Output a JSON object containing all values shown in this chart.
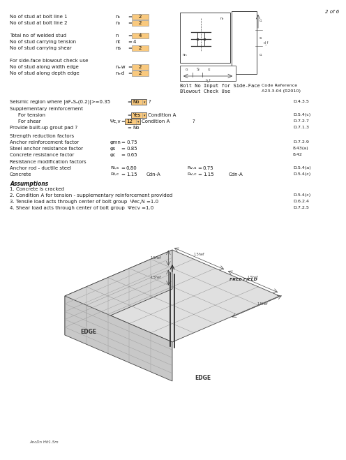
{
  "page_label": "2 of 6",
  "bg": "#ffffff",
  "orange": "#f9c97e",
  "rows": [
    {
      "label": "No of stud at bolt line 1",
      "var": "n₁",
      "val": "2",
      "hi": true
    },
    {
      "label": "No of stud at bolt line 2",
      "var": "n₂",
      "val": "2",
      "hi": true
    },
    {
      "label": "",
      "var": "",
      "val": "",
      "hi": false
    },
    {
      "label": "Total no of welded stud",
      "var": "n",
      "val": "4",
      "hi": true
    },
    {
      "label": "No of stud carrying tension",
      "var": "nt",
      "val": "4",
      "hi": false
    },
    {
      "label": "No of stud carrying shear",
      "var": "ns",
      "val": "2",
      "hi": true
    },
    {
      "label": "",
      "var": "",
      "val": "",
      "hi": false
    },
    {
      "label": "For side-face blowout check use",
      "var": "",
      "val": "",
      "hi": false
    },
    {
      "label": "No of stud along width edge",
      "var": "nₘw",
      "val": "2",
      "hi": true
    },
    {
      "label": "No of stud along depth edge",
      "var": "nₘd",
      "val": "2",
      "hi": true
    }
  ],
  "diag_note1": "Bolt No Input for Side-Face",
  "diag_note2": "Blowout Check Use",
  "code_ref_lbl": "Code Reference",
  "code_ref_val": "A23.3-04 (R2010)",
  "seismic_label": "Seismic region where |aFₐSₐ(0.2)|>=0.35",
  "seismic_val": "No",
  "seismic_code": "D.4.3.5",
  "supp_lbl": "Supplementary reinforcement",
  "tens_lbl": "For tension",
  "tens_val": "Yes",
  "tens_cond": "Condition A",
  "tens_code": "D.5.4(c)",
  "shear_lbl": "For shear",
  "shear_var": "Ψc,v",
  "shear_val": "12",
  "shear_cond": "Condition A",
  "shear_q": "?",
  "shear_code": "D.7.2.7",
  "grout_lbl": "Provide built-up grout pad ?",
  "grout_val": "No",
  "grout_code": "D.7.1.3",
  "str_lbl": "Strength reduction factors",
  "arf_lbl": "Anchor reinforcement factor",
  "arf_var": "φmn",
  "arf_val": "0.75",
  "arf_code": "D.7.2.9",
  "sar_lbl": "Steel anchor resistance factor",
  "sar_var": "φs",
  "sar_val": "0.85",
  "sar_code": "8.43(a)",
  "crf_lbl": "Concrete resistance factor",
  "crf_var": "φc",
  "crf_val": "0.65",
  "crf_code": "8.42",
  "rmf_lbl": "Resistance modification factors",
  "ard_lbl": "Anchor rod - ductile steel",
  "ard_tv": "Rt,s",
  "ard_tval": "0.80",
  "ard_vv": "Rv,s",
  "ard_vval": "0.75",
  "ard_code": "D.5.4(a)",
  "conc_lbl": "Concrete",
  "conc_tv": "Rt,c",
  "conc_tval": "1.15",
  "conc_tcond": "Cdn-A",
  "conc_vv": "Rv,c",
  "conc_vval": "1.15",
  "conc_vcond": "Cdn-A",
  "conc_code": "D.5.4(c)",
  "ass_lbl": "Assumptions",
  "ass1": "1. Concrete is cracked",
  "ass2": "2. Condition A for tension - supplementary reinforcement provided",
  "ass2c": "D.5.4(c)",
  "ass3": "3. Tensile load acts through center of bolt group  Ψec,N =1.0",
  "ass3c": "D.6.2.4",
  "ass4": "4. Shear load acts through center of bolt group  Ψecv =1.0",
  "ass4c": "D.7.2.5"
}
